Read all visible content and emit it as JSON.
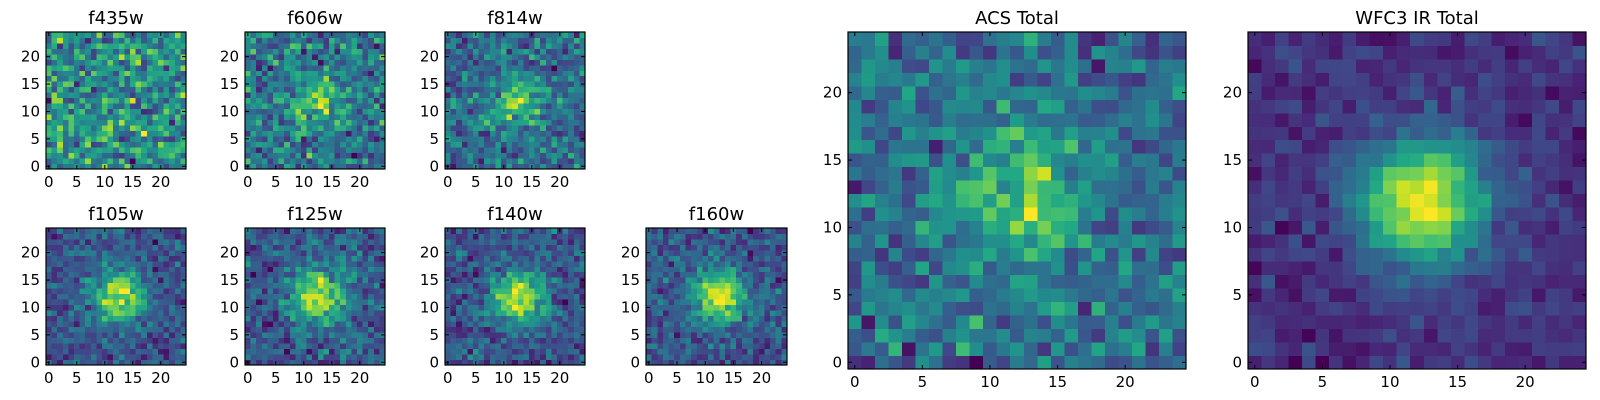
{
  "chart_data": [
    {
      "type": "heatmap",
      "title": "f435w",
      "grid_size": 25,
      "xlim": [
        0,
        24
      ],
      "ylim": [
        0,
        24
      ],
      "xticks": [
        "0",
        "5",
        "10",
        "15",
        "20"
      ],
      "yticks": [
        "0",
        "5",
        "10",
        "15",
        "20"
      ],
      "colormap": "viridis",
      "source_peak": 0.0,
      "noise": 1.0,
      "seed": 11
    },
    {
      "type": "heatmap",
      "title": "f606w",
      "grid_size": 25,
      "xlim": [
        0,
        24
      ],
      "ylim": [
        0,
        24
      ],
      "xticks": [
        "0",
        "5",
        "10",
        "15",
        "20"
      ],
      "yticks": [
        "0",
        "5",
        "10",
        "15",
        "20"
      ],
      "colormap": "viridis",
      "source_peak": 0.45,
      "noise": 1.0,
      "seed": 23
    },
    {
      "type": "heatmap",
      "title": "f814w",
      "grid_size": 25,
      "xlim": [
        0,
        24
      ],
      "ylim": [
        0,
        24
      ],
      "xticks": [
        "0",
        "5",
        "10",
        "15",
        "20"
      ],
      "yticks": [
        "0",
        "5",
        "10",
        "15",
        "20"
      ],
      "colormap": "viridis",
      "source_peak": 0.6,
      "noise": 1.0,
      "seed": 37
    },
    {
      "type": "heatmap",
      "title": "f105w",
      "grid_size": 25,
      "xlim": [
        0,
        24
      ],
      "ylim": [
        0,
        24
      ],
      "xticks": [
        "0",
        "5",
        "10",
        "15",
        "20"
      ],
      "yticks": [
        "0",
        "5",
        "10",
        "15",
        "20"
      ],
      "colormap": "viridis",
      "source_peak": 0.85,
      "noise": 0.6,
      "seed": 41
    },
    {
      "type": "heatmap",
      "title": "f125w",
      "grid_size": 25,
      "xlim": [
        0,
        24
      ],
      "ylim": [
        0,
        24
      ],
      "xticks": [
        "0",
        "5",
        "10",
        "15",
        "20"
      ],
      "yticks": [
        "0",
        "5",
        "10",
        "15",
        "20"
      ],
      "colormap": "viridis",
      "source_peak": 0.8,
      "noise": 0.65,
      "seed": 53
    },
    {
      "type": "heatmap",
      "title": "f140w",
      "grid_size": 25,
      "xlim": [
        0,
        24
      ],
      "ylim": [
        0,
        24
      ],
      "xticks": [
        "0",
        "5",
        "10",
        "15",
        "20"
      ],
      "yticks": [
        "0",
        "5",
        "10",
        "15",
        "20"
      ],
      "colormap": "viridis",
      "source_peak": 0.85,
      "noise": 0.6,
      "seed": 67
    },
    {
      "type": "heatmap",
      "title": "f160w",
      "grid_size": 25,
      "xlim": [
        0,
        24
      ],
      "ylim": [
        0,
        24
      ],
      "xticks": [
        "0",
        "5",
        "10",
        "15",
        "20"
      ],
      "yticks": [
        "0",
        "5",
        "10",
        "15",
        "20"
      ],
      "colormap": "viridis",
      "source_peak": 0.85,
      "noise": 0.6,
      "seed": 79
    },
    {
      "type": "heatmap",
      "title": "ACS Total",
      "grid_size": 25,
      "xlim": [
        0,
        24
      ],
      "ylim": [
        0,
        24
      ],
      "xticks": [
        "0",
        "5",
        "10",
        "15",
        "20"
      ],
      "yticks": [
        "0",
        "5",
        "10",
        "15",
        "20"
      ],
      "colormap": "viridis",
      "source_peak": 0.55,
      "noise": 0.8,
      "seed": 97
    },
    {
      "type": "heatmap",
      "title": "WFC3 IR Total",
      "grid_size": 25,
      "xlim": [
        0,
        24
      ],
      "ylim": [
        0,
        24
      ],
      "xticks": [
        "0",
        "5",
        "10",
        "15",
        "20"
      ],
      "yticks": [
        "0",
        "5",
        "10",
        "15",
        "20"
      ],
      "colormap": "viridis",
      "source_peak": 1.0,
      "noise": 0.3,
      "seed": 113
    }
  ]
}
